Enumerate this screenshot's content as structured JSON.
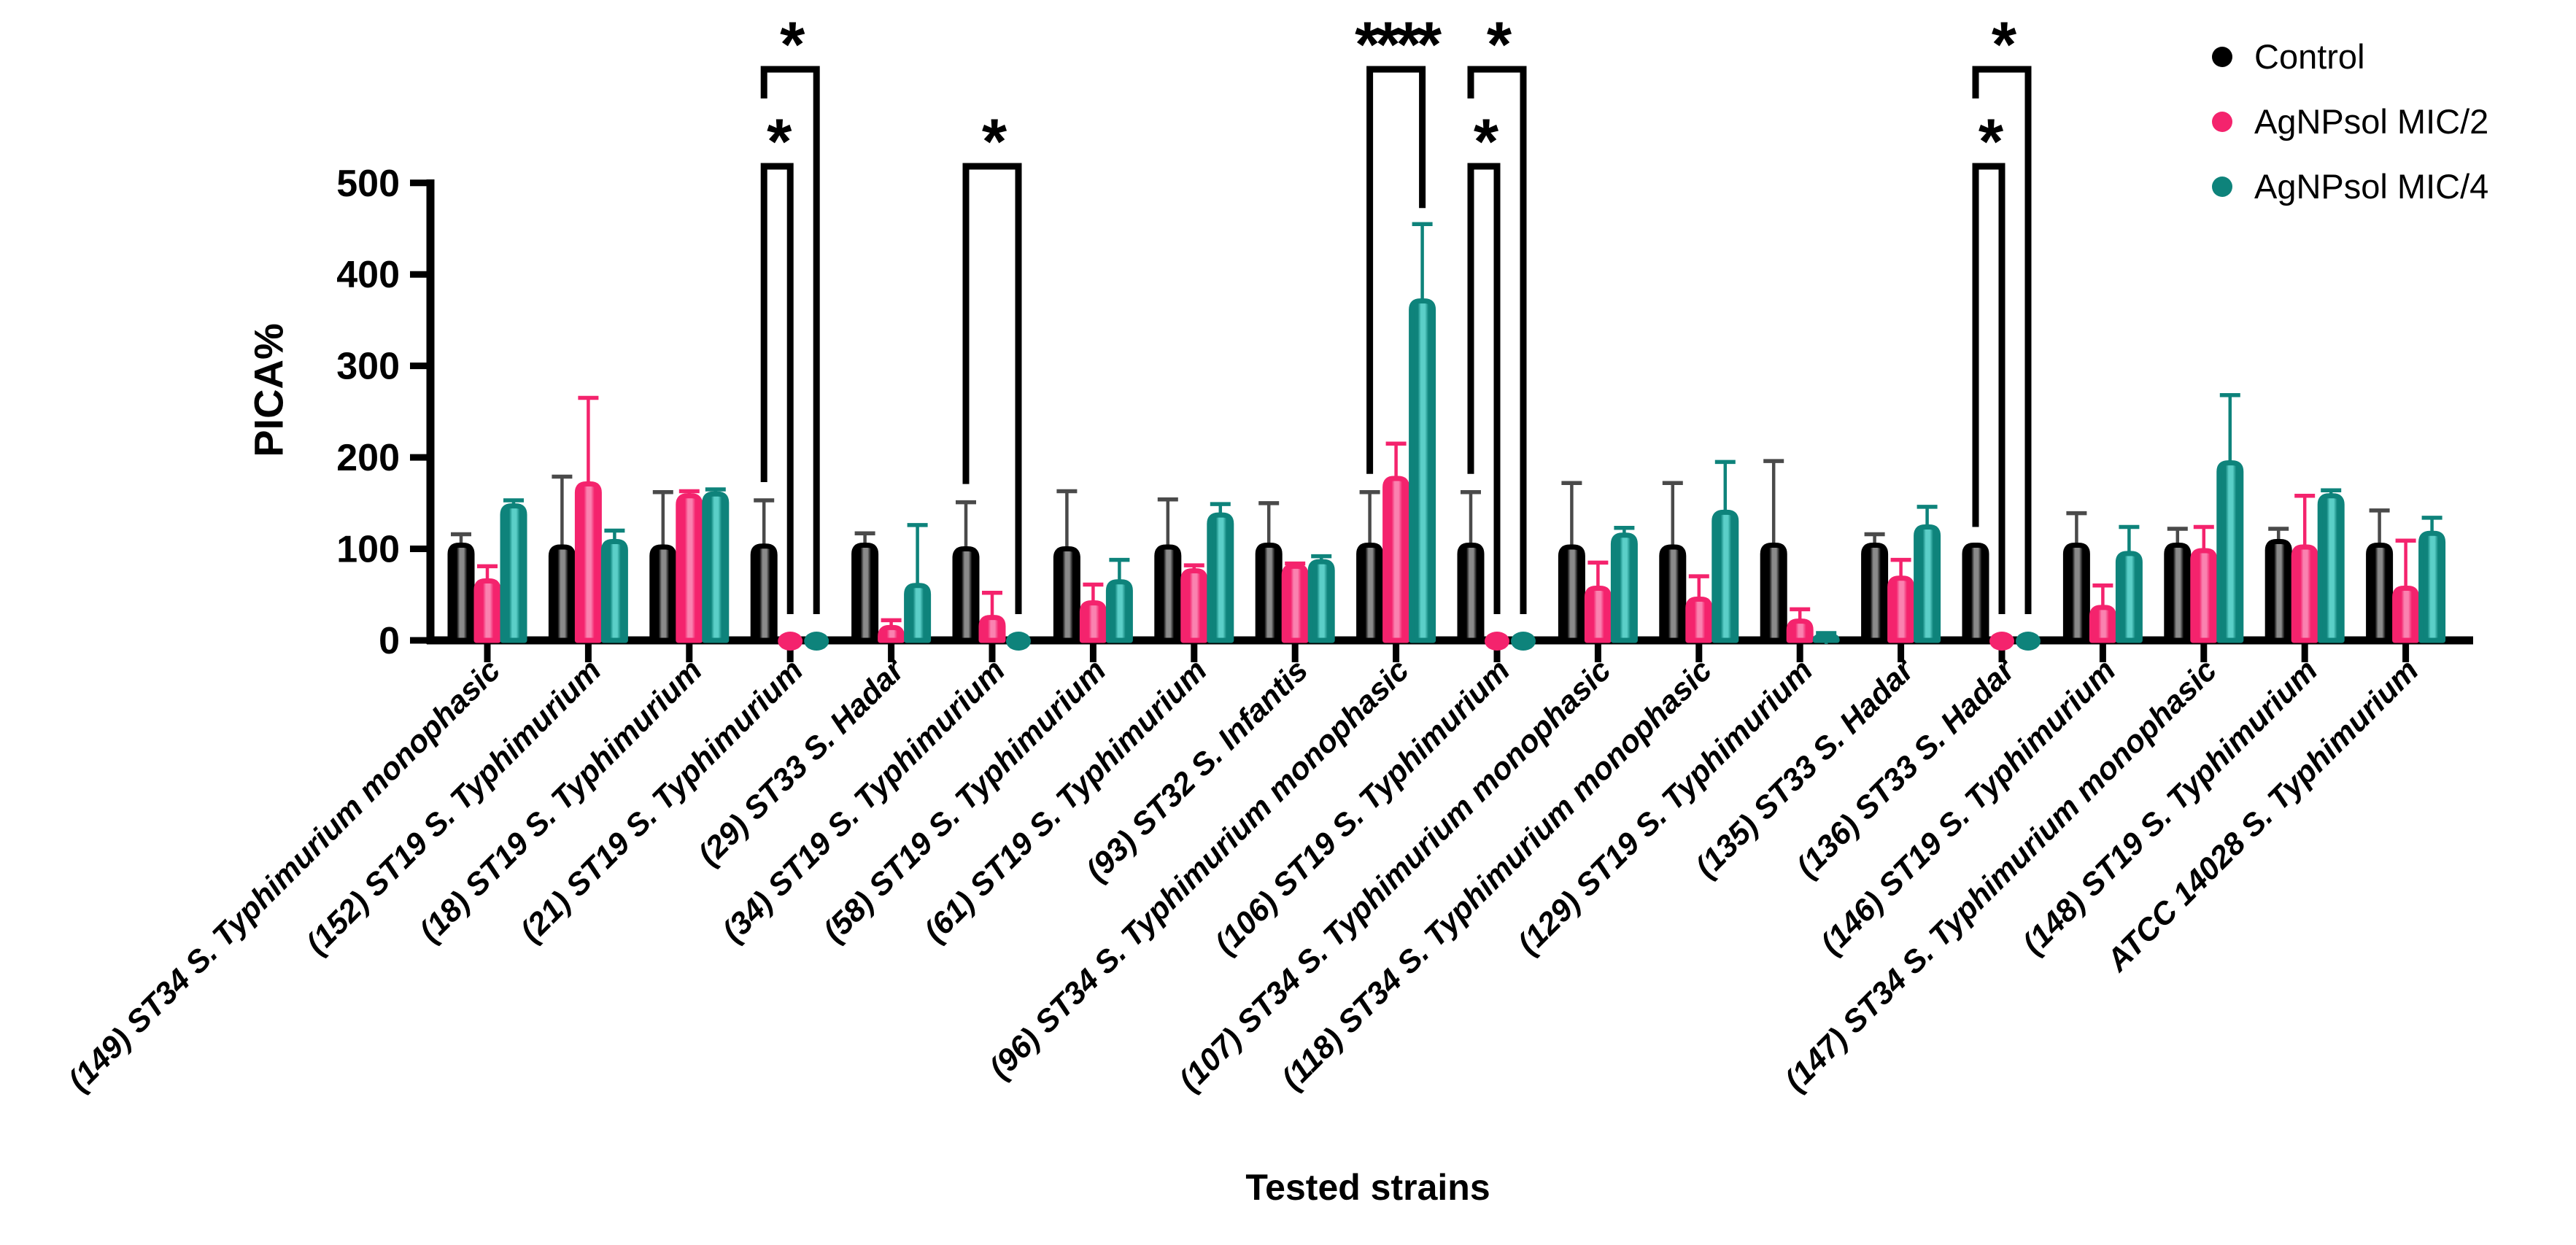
{
  "figure": {
    "background": "#ffffff"
  },
  "legend": {
    "position": "top-right",
    "items": [
      {
        "label": "Control",
        "color": "#000000",
        "marker": "circle"
      },
      {
        "label": "AgNPsol MIC/2",
        "color": "#F4236D",
        "marker": "circle"
      },
      {
        "label": "AgNPsol MIC/4",
        "color": "#0E837B",
        "marker": "circle"
      }
    ]
  },
  "chart_data": {
    "type": "bar",
    "title": "",
    "xlabel": "Tested strains",
    "ylabel": "PICA%",
    "ylim": [
      0,
      500
    ],
    "yticks": [
      0,
      100,
      200,
      300,
      400,
      500
    ],
    "grid": false,
    "legend_position": "top-right",
    "bar_style": "outlined rounded-top bars with upper error bars; zero values drawn as filled dots on the baseline",
    "categories": [
      "(149) ST34 S. Typhimurium monophasic",
      "(152) ST19 S. Typhimurium",
      "(18) ST19 S. Typhimurium",
      "(21) ST19 S. Typhimurium",
      "(29) ST33 S. Hadar",
      "(34) ST19 S. Typhimurium",
      "(58) ST19 S. Typhimurium",
      "(61) ST19 S. Typhimurium",
      "(93) ST32 S. Infantis",
      "(96) ST34 S. Typhimurium monophasic",
      "(106) ST19 S. Typhimurium",
      "(107) ST34 S. Typhimurium monophasic",
      "(118) ST34 S. Typhimurium monophasic",
      "(129) ST19 S. Typhimurium",
      "(135) ST33 S. Hadar",
      "(136) ST33 S. Hadar",
      "(146) ST19 S. Typhimurium",
      "(147) ST34 S. Typhimurium monophasic",
      "(148) ST19 S. Typhimurium",
      "ATCC 14028 S. Typhimurium"
    ],
    "series": [
      {
        "name": "Control",
        "edge_color": "#000000",
        "fill_color": "#8a8a8a",
        "error_color": "#4a4a4a",
        "values": [
          104,
          102,
          102,
          103,
          104,
          100,
          100,
          102,
          104,
          104,
          104,
          102,
          102,
          104,
          104,
          104,
          104,
          104,
          108,
          104
        ],
        "errors": [
          12,
          77,
          60,
          50,
          13,
          51,
          63,
          52,
          46,
          58,
          58,
          70,
          70,
          92,
          12,
          0,
          35,
          18,
          14,
          38
        ]
      },
      {
        "name": "AgNPsol MIC/2",
        "edge_color": "#F4236D",
        "fill_color": "#FA82B0",
        "error_color": "#F4236D",
        "values": [
          65,
          171,
          158,
          0,
          14,
          25,
          41,
          76,
          81,
          177,
          0,
          57,
          45,
          21,
          68,
          0,
          36,
          98,
          102,
          57
        ],
        "errors": [
          16,
          94,
          5,
          0,
          8,
          27,
          20,
          6,
          3,
          38,
          0,
          28,
          25,
          13,
          20,
          0,
          24,
          26,
          56,
          52
        ]
      },
      {
        "name": "AgNPsol MIC/4",
        "edge_color": "#0E837B",
        "fill_color": "#5BCFC8",
        "error_color": "#0E837B",
        "values": [
          147,
          108,
          160,
          0,
          60,
          0,
          64,
          137,
          86,
          371,
          0,
          115,
          140,
          4,
          124,
          0,
          95,
          194,
          158,
          117
        ],
        "errors": [
          6,
          12,
          5,
          0,
          66,
          0,
          24,
          12,
          6,
          84,
          0,
          8,
          55,
          4,
          22,
          0,
          29,
          74,
          6,
          17
        ]
      }
    ],
    "significance": [
      {
        "category_index": 3,
        "from_series": 0,
        "to_series": 1,
        "label": "*",
        "tier": "inner"
      },
      {
        "category_index": 3,
        "from_series": 0,
        "to_series": 2,
        "label": "*",
        "tier": "outer"
      },
      {
        "category_index": 5,
        "from_series": 0,
        "to_series": 2,
        "label": "*",
        "tier": "inner"
      },
      {
        "category_index": 9,
        "from_series": 0,
        "to_series": 2,
        "label": "****",
        "tier": "outer"
      },
      {
        "category_index": 10,
        "from_series": 0,
        "to_series": 1,
        "label": "*",
        "tier": "inner"
      },
      {
        "category_index": 10,
        "from_series": 0,
        "to_series": 2,
        "label": "*",
        "tier": "outer"
      },
      {
        "category_index": 15,
        "from_series": 0,
        "to_series": 1,
        "label": "*",
        "tier": "inner"
      },
      {
        "category_index": 15,
        "from_series": 0,
        "to_series": 2,
        "label": "*",
        "tier": "outer"
      }
    ]
  }
}
